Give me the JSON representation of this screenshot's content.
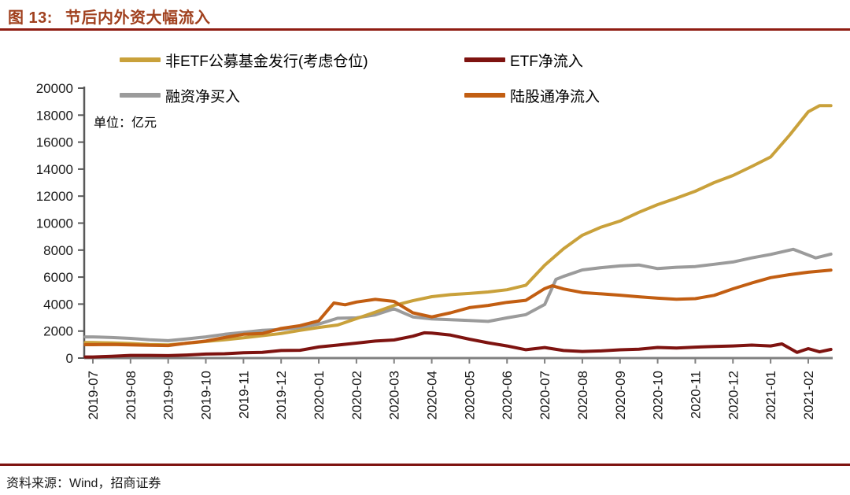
{
  "figure": {
    "title_prefix": "图 13:",
    "title_text": "节后内外资大幅流入",
    "source": "资料来源：Wind，招商证券"
  },
  "colors": {
    "title_color": "#A0401E",
    "title_rule": "#8F1D12",
    "bottom_rule": "#7E1310",
    "axis_x": "#808080",
    "axis_y": "#595959",
    "tick_label": "#1A1A1A"
  },
  "chart_data": {
    "type": "line",
    "title": "节后内外资大幅流入",
    "unit_label": "单位：亿元",
    "grid": false,
    "legend_position": "top",
    "y_axis": {
      "max": 20000,
      "min": 0,
      "ticks": [
        0,
        2000,
        4000,
        6000,
        8000,
        10000,
        12000,
        14000,
        16000,
        18000,
        20000
      ]
    },
    "x_axis": {
      "categories": [
        "2019-07",
        "2019-08",
        "2019-09",
        "2019-10",
        "2019-11",
        "2019-12",
        "2020-01",
        "2020-02",
        "2020-03",
        "2020-04",
        "2020-05",
        "2020-06",
        "2020-07",
        "2020-08",
        "2020-09",
        "2020-10",
        "2020-11",
        "2020-12",
        "2021-01",
        "2021-02"
      ],
      "label_rotation": -90
    },
    "draw_order": [
      2,
      0,
      3,
      1
    ],
    "series": [
      {
        "name": "非ETF公募基金发行(考虑仓位)",
        "color": "#C9A13B",
        "points": [
          [
            0,
            1150
          ],
          [
            0.5,
            1120
          ],
          [
            1,
            1080
          ],
          [
            1.5,
            1010
          ],
          [
            2,
            980
          ],
          [
            2.5,
            1100
          ],
          [
            3,
            1230
          ],
          [
            3.5,
            1360
          ],
          [
            4,
            1500
          ],
          [
            4.5,
            1660
          ],
          [
            5,
            1820
          ],
          [
            5.5,
            2050
          ],
          [
            6,
            2270
          ],
          [
            6.5,
            2450
          ],
          [
            7,
            2920
          ],
          [
            7.5,
            3400
          ],
          [
            8,
            3900
          ],
          [
            8.5,
            4250
          ],
          [
            9,
            4550
          ],
          [
            9.5,
            4700
          ],
          [
            10,
            4790
          ],
          [
            10.5,
            4900
          ],
          [
            11,
            5060
          ],
          [
            11.5,
            5400
          ],
          [
            12,
            6880
          ],
          [
            12.5,
            8100
          ],
          [
            13,
            9100
          ],
          [
            13.5,
            9700
          ],
          [
            14,
            10150
          ],
          [
            14.5,
            10800
          ],
          [
            15,
            11370
          ],
          [
            15.5,
            11850
          ],
          [
            16,
            12360
          ],
          [
            16.5,
            13000
          ],
          [
            17,
            13530
          ],
          [
            17.5,
            14200
          ],
          [
            18,
            14900
          ],
          [
            18.5,
            16500
          ],
          [
            19,
            18250
          ],
          [
            19.3,
            18700
          ],
          [
            19.6,
            18700
          ]
        ]
      },
      {
        "name": "ETF净流入",
        "color": "#7E1310",
        "points": [
          [
            0,
            80
          ],
          [
            0.5,
            130
          ],
          [
            1,
            200
          ],
          [
            1.5,
            200
          ],
          [
            2,
            180
          ],
          [
            2.5,
            230
          ],
          [
            3,
            300
          ],
          [
            3.5,
            320
          ],
          [
            4,
            390
          ],
          [
            4.5,
            420
          ],
          [
            5,
            560
          ],
          [
            5.5,
            580
          ],
          [
            6,
            820
          ],
          [
            6.5,
            960
          ],
          [
            7,
            1110
          ],
          [
            7.5,
            1260
          ],
          [
            8,
            1340
          ],
          [
            8.5,
            1620
          ],
          [
            8.8,
            1870
          ],
          [
            9,
            1850
          ],
          [
            9.5,
            1700
          ],
          [
            10,
            1400
          ],
          [
            10.5,
            1130
          ],
          [
            11,
            900
          ],
          [
            11.5,
            620
          ],
          [
            12,
            780
          ],
          [
            12.5,
            560
          ],
          [
            13,
            490
          ],
          [
            13.5,
            530
          ],
          [
            14,
            610
          ],
          [
            14.5,
            660
          ],
          [
            15,
            790
          ],
          [
            15.5,
            740
          ],
          [
            16,
            810
          ],
          [
            16.5,
            860
          ],
          [
            17,
            900
          ],
          [
            17.5,
            960
          ],
          [
            18,
            900
          ],
          [
            18.3,
            1050
          ],
          [
            18.7,
            420
          ],
          [
            19,
            700
          ],
          [
            19.3,
            460
          ],
          [
            19.6,
            640
          ]
        ]
      },
      {
        "name": "融资净买入",
        "color": "#9B9B9B",
        "points": [
          [
            0,
            1570
          ],
          [
            0.5,
            1520
          ],
          [
            1,
            1460
          ],
          [
            1.5,
            1350
          ],
          [
            2,
            1290
          ],
          [
            2.5,
            1420
          ],
          [
            3,
            1570
          ],
          [
            3.5,
            1760
          ],
          [
            4,
            1900
          ],
          [
            4.5,
            2050
          ],
          [
            5,
            2120
          ],
          [
            5.5,
            2260
          ],
          [
            6,
            2520
          ],
          [
            6.5,
            2950
          ],
          [
            7,
            2980
          ],
          [
            7.5,
            3200
          ],
          [
            8,
            3650
          ],
          [
            8.5,
            3050
          ],
          [
            9,
            2900
          ],
          [
            9.5,
            2840
          ],
          [
            10,
            2790
          ],
          [
            10.5,
            2720
          ],
          [
            11,
            2980
          ],
          [
            11.5,
            3220
          ],
          [
            12,
            3970
          ],
          [
            12.3,
            5830
          ],
          [
            12.5,
            6050
          ],
          [
            13,
            6530
          ],
          [
            13.5,
            6700
          ],
          [
            14,
            6830
          ],
          [
            14.5,
            6900
          ],
          [
            15,
            6630
          ],
          [
            15.5,
            6730
          ],
          [
            16,
            6780
          ],
          [
            16.5,
            6950
          ],
          [
            17,
            7120
          ],
          [
            17.5,
            7420
          ],
          [
            18,
            7680
          ],
          [
            18.6,
            8060
          ],
          [
            19.2,
            7420
          ],
          [
            19.6,
            7700
          ]
        ]
      },
      {
        "name": "陆股通净流入",
        "color": "#C25E12",
        "points": [
          [
            0,
            990
          ],
          [
            0.5,
            1010
          ],
          [
            1,
            980
          ],
          [
            1.5,
            950
          ],
          [
            2,
            930
          ],
          [
            2.5,
            1110
          ],
          [
            3,
            1260
          ],
          [
            3.5,
            1520
          ],
          [
            4,
            1760
          ],
          [
            4.5,
            1820
          ],
          [
            5,
            2200
          ],
          [
            5.5,
            2400
          ],
          [
            6,
            2760
          ],
          [
            6.4,
            4080
          ],
          [
            6.7,
            3950
          ],
          [
            7,
            4150
          ],
          [
            7.5,
            4350
          ],
          [
            8,
            4200
          ],
          [
            8.5,
            3350
          ],
          [
            9,
            3050
          ],
          [
            9.5,
            3350
          ],
          [
            10,
            3740
          ],
          [
            10.5,
            3900
          ],
          [
            11,
            4130
          ],
          [
            11.5,
            4280
          ],
          [
            12,
            5150
          ],
          [
            12.2,
            5360
          ],
          [
            12.5,
            5120
          ],
          [
            13,
            4860
          ],
          [
            13.5,
            4760
          ],
          [
            14,
            4660
          ],
          [
            14.5,
            4540
          ],
          [
            15,
            4440
          ],
          [
            15.5,
            4360
          ],
          [
            16,
            4400
          ],
          [
            16.5,
            4650
          ],
          [
            17,
            5130
          ],
          [
            17.5,
            5560
          ],
          [
            18,
            5960
          ],
          [
            18.5,
            6180
          ],
          [
            19,
            6360
          ],
          [
            19.6,
            6520
          ]
        ]
      }
    ]
  }
}
